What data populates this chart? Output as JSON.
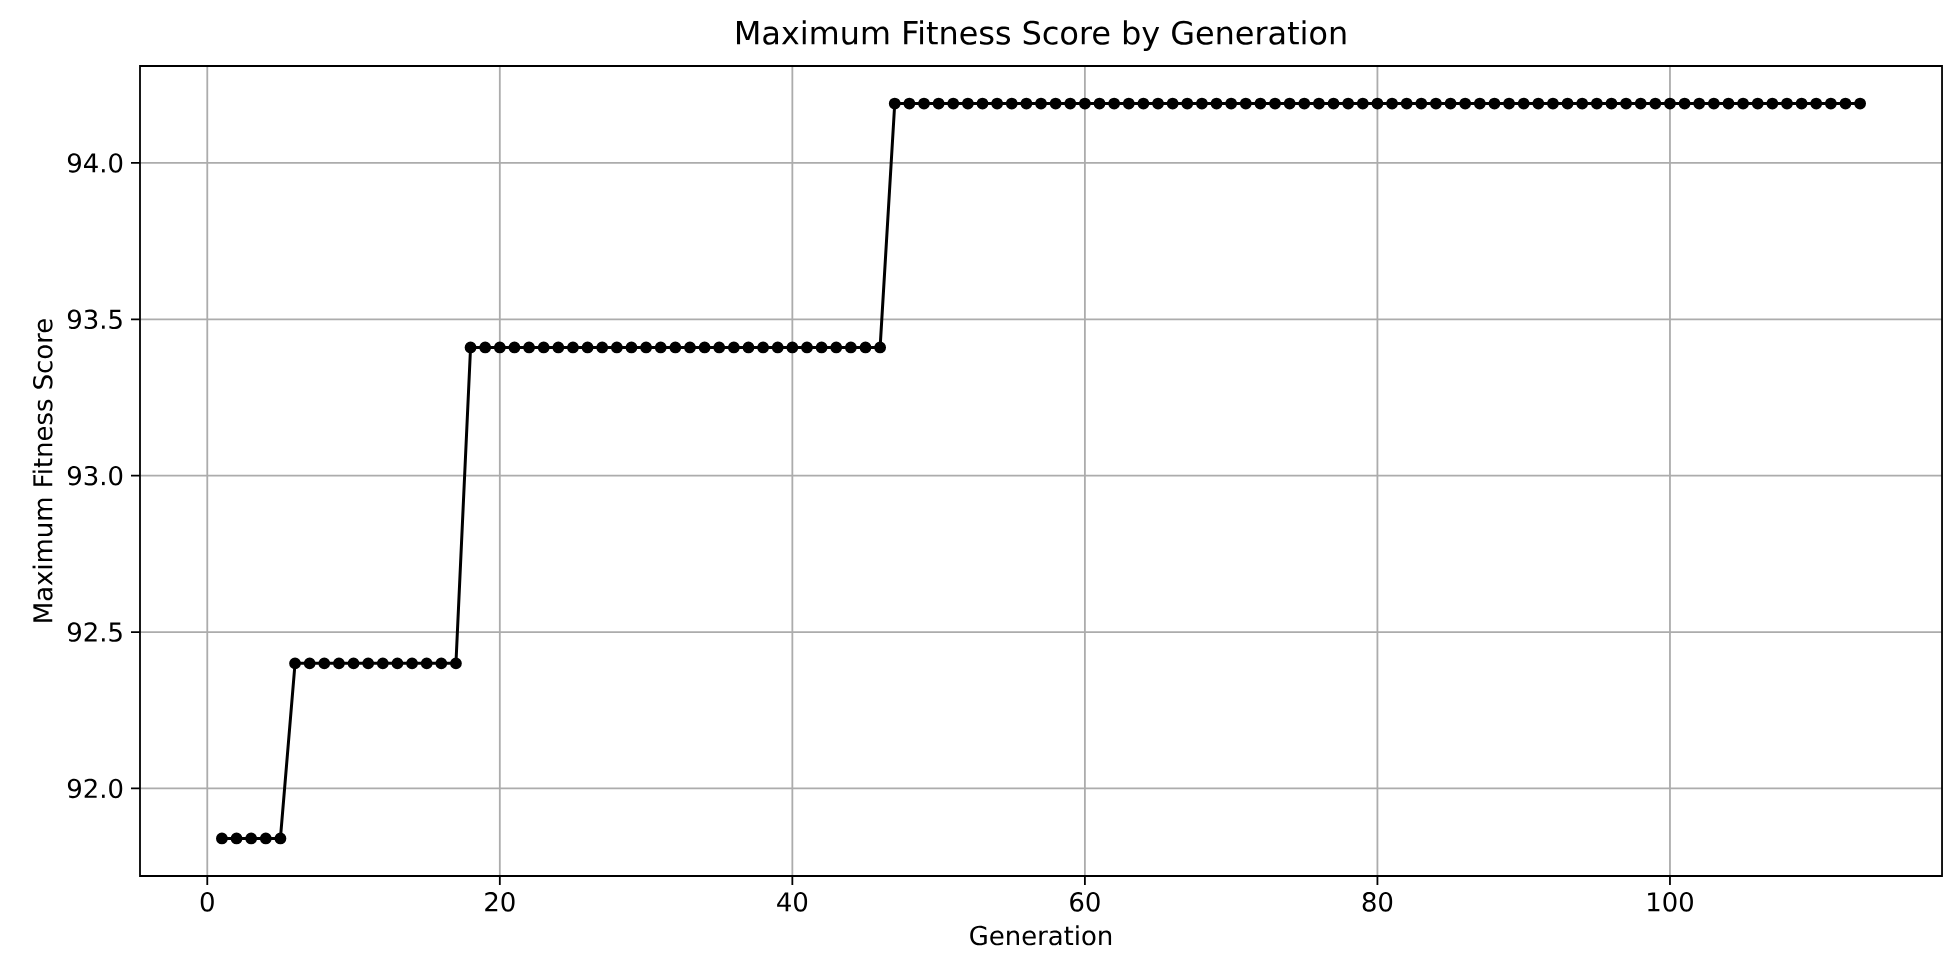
{
  "chart_data": {
    "type": "line",
    "title": "Maximum Fitness Score by Generation",
    "xlabel": "Generation",
    "ylabel": "Maximum Fitness Score",
    "x": [
      1,
      2,
      3,
      4,
      5,
      6,
      7,
      8,
      9,
      10,
      11,
      12,
      13,
      14,
      15,
      16,
      17,
      18,
      19,
      20,
      21,
      22,
      23,
      24,
      25,
      26,
      27,
      28,
      29,
      30,
      31,
      32,
      33,
      34,
      35,
      36,
      37,
      38,
      39,
      40,
      41,
      42,
      43,
      44,
      45,
      46,
      47,
      48,
      49,
      50,
      51,
      52,
      53,
      54,
      55,
      56,
      57,
      58,
      59,
      60,
      61,
      62,
      63,
      64,
      65,
      66,
      67,
      68,
      69,
      70,
      71,
      72,
      73,
      74,
      75,
      76,
      77,
      78,
      79,
      80,
      81,
      82,
      83,
      84,
      85,
      86,
      87,
      88,
      89,
      90,
      91,
      92,
      93,
      94,
      95,
      96,
      97,
      98,
      99,
      100,
      101,
      102,
      103,
      104,
      105,
      106,
      107,
      108,
      109,
      110,
      111,
      112,
      113
    ],
    "values": [
      91.84,
      91.84,
      91.84,
      91.84,
      91.84,
      92.4,
      92.4,
      92.4,
      92.4,
      92.4,
      92.4,
      92.4,
      92.4,
      92.4,
      92.4,
      92.4,
      92.4,
      93.41,
      93.41,
      93.41,
      93.41,
      93.41,
      93.41,
      93.41,
      93.41,
      93.41,
      93.41,
      93.41,
      93.41,
      93.41,
      93.41,
      93.41,
      93.41,
      93.41,
      93.41,
      93.41,
      93.41,
      93.41,
      93.41,
      93.41,
      93.41,
      93.41,
      93.41,
      93.41,
      93.41,
      93.41,
      94.19,
      94.19,
      94.19,
      94.19,
      94.19,
      94.19,
      94.19,
      94.19,
      94.19,
      94.19,
      94.19,
      94.19,
      94.19,
      94.19,
      94.19,
      94.19,
      94.19,
      94.19,
      94.19,
      94.19,
      94.19,
      94.19,
      94.19,
      94.19,
      94.19,
      94.19,
      94.19,
      94.19,
      94.19,
      94.19,
      94.19,
      94.19,
      94.19,
      94.19,
      94.19,
      94.19,
      94.19,
      94.19,
      94.19,
      94.19,
      94.19,
      94.19,
      94.19,
      94.19,
      94.19,
      94.19,
      94.19,
      94.19,
      94.19,
      94.19,
      94.19,
      94.19,
      94.19,
      94.19,
      94.19,
      94.19,
      94.19,
      94.19,
      94.19,
      94.19,
      94.19,
      94.19,
      94.19,
      94.19,
      94.19,
      94.19,
      94.19
    ],
    "color": "#000000",
    "marker": "circle",
    "line_style": "solid",
    "grid": true,
    "xlim": [
      -4.6,
      118.6
    ],
    "ylim": [
      91.72,
      94.31
    ],
    "xticks": [
      0,
      20,
      40,
      60,
      80,
      100
    ],
    "yticks": [
      {
        "value": 92,
        "label": "92.0"
      },
      {
        "value": 92.5,
        "label": "92.5"
      },
      {
        "value": 93,
        "label": "93.0"
      },
      {
        "value": 93.5,
        "label": "93.5"
      },
      {
        "value": 94,
        "label": "94.0"
      }
    ]
  }
}
